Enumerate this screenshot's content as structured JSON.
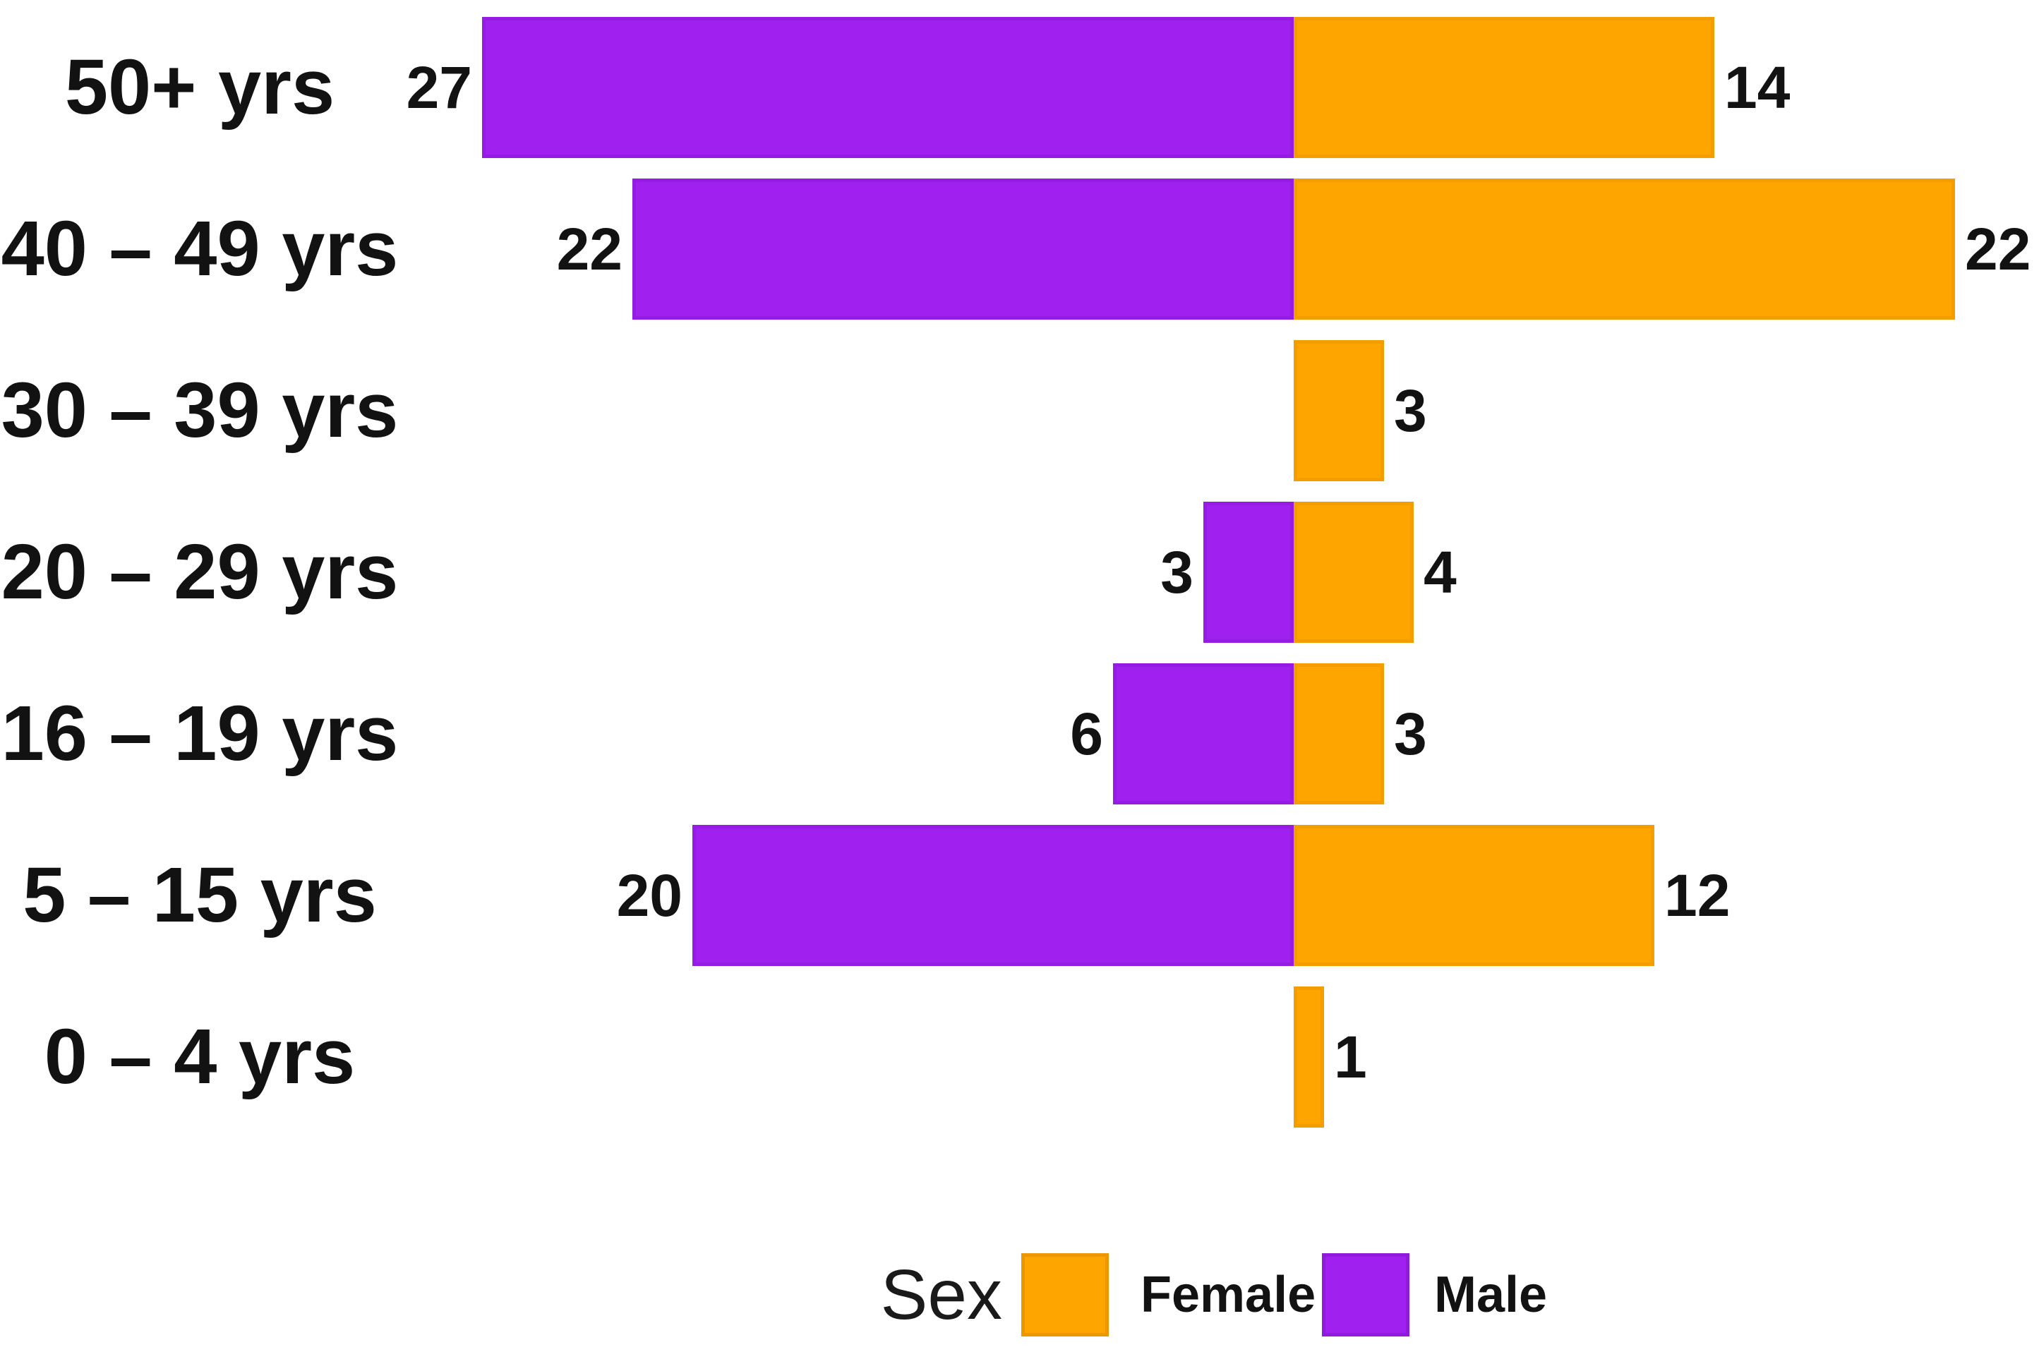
{
  "chart_data": {
    "type": "bar",
    "variant": "population-pyramid-diverging-horizontal",
    "title": "",
    "categories": [
      "50+ yrs",
      "40 – 49 yrs",
      "30 – 39 yrs",
      "20 – 29 yrs",
      "16 – 19 yrs",
      "5 – 15 yrs",
      "0 – 4 yrs"
    ],
    "series": [
      {
        "name": "Male",
        "side": "left",
        "color": "#A020F0",
        "values": [
          27,
          22,
          0,
          3,
          6,
          20,
          0
        ]
      },
      {
        "name": "Female",
        "side": "right",
        "color": "#FFA500",
        "values": [
          14,
          22,
          3,
          4,
          3,
          12,
          1
        ]
      }
    ],
    "value_labels": {
      "position": "outside-bar-ends",
      "male": [
        "27",
        "22",
        "",
        "3",
        "6",
        "20",
        ""
      ],
      "female": [
        "14",
        "22",
        "3",
        "4",
        "3",
        "12",
        "1"
      ]
    },
    "legend": {
      "title": "Sex",
      "position": "bottom-center-right",
      "entries": [
        {
          "label": "Female",
          "color": "#FFA500"
        },
        {
          "label": "Male",
          "color": "#A020F0"
        }
      ]
    },
    "axes": {
      "x_axis_visible": false,
      "y_axis_visible": false,
      "gridlines": false
    },
    "background": "#FFFFFF",
    "text_color": "#121212"
  }
}
